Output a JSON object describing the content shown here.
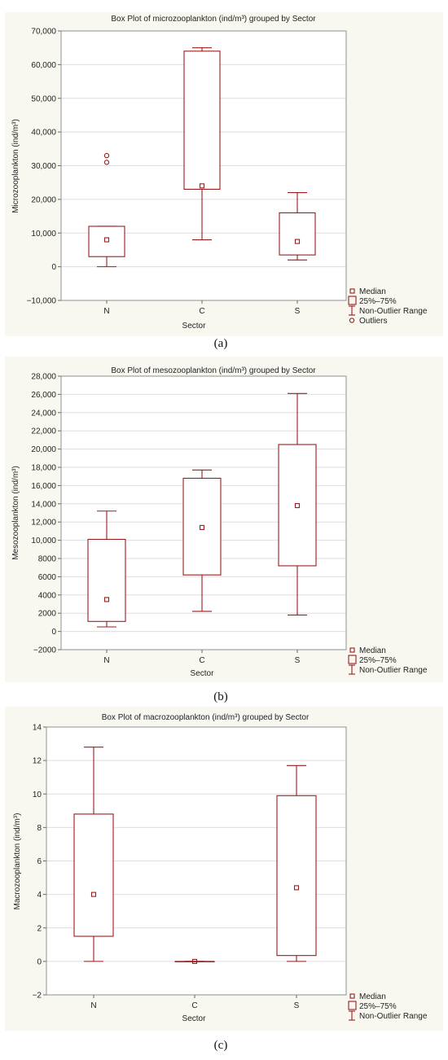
{
  "colors": {
    "marker": "#9b1c1c",
    "panel_background": "#f8f8f1",
    "grid": "#dedede"
  },
  "legend_labels": {
    "median": "Median",
    "box": "25%–75%",
    "whisker": "Non-Outlier Range",
    "outliers": "Outliers"
  },
  "chart_data": [
    {
      "type": "box",
      "panel_label": "(a)",
      "title": "Box Plot of microzooplankton (ind/m³) grouped by  Sector",
      "xlabel": "Sector",
      "ylabel": "Microzooplankton (ind/m³)",
      "ylim": [
        -10000,
        70000
      ],
      "yticks": [
        -10000,
        0,
        10000,
        20000,
        30000,
        40000,
        50000,
        60000,
        70000
      ],
      "ytick_labels": [
        "−10,000",
        "0",
        "10,000",
        "20,000",
        "30,000",
        "40,000",
        "50,000",
        "60,000",
        "70,000"
      ],
      "grid": true,
      "legend_position": "bottom-right",
      "legend_items": [
        "median",
        "box",
        "whisker",
        "outliers"
      ],
      "categories": [
        "N",
        "C",
        "S"
      ],
      "boxes": [
        {
          "median": 8000,
          "q1": 3000,
          "q3": 12000,
          "min": 0,
          "max": 12000,
          "outliers": [
            31000,
            33000
          ]
        },
        {
          "median": 24000,
          "q1": 23000,
          "q3": 64000,
          "min": 8000,
          "max": 65000,
          "outliers": []
        },
        {
          "median": 7500,
          "q1": 3500,
          "q3": 16000,
          "min": 2000,
          "max": 22000,
          "outliers": []
        }
      ]
    },
    {
      "type": "box",
      "panel_label": "(b)",
      "title": "Box Plot of mesozooplankton (ind/m³) grouped by  Sector",
      "xlabel": "Sector",
      "ylabel": "Mesozooplankton (ind/m³)",
      "ylim": [
        -2000,
        28000
      ],
      "yticks": [
        -2000,
        0,
        2000,
        4000,
        6000,
        8000,
        10000,
        12000,
        14000,
        16000,
        18000,
        20000,
        22000,
        24000,
        26000,
        28000
      ],
      "ytick_labels": [
        "−2000",
        "0",
        "2000",
        "4000",
        "6000",
        "8000",
        "10,000",
        "12,000",
        "14,000",
        "16,000",
        "18,000",
        "20,000",
        "22,000",
        "24,000",
        "26,000",
        "28,000"
      ],
      "grid": true,
      "legend_position": "bottom-right",
      "legend_items": [
        "median",
        "box",
        "whisker"
      ],
      "categories": [
        "N",
        "C",
        "S"
      ],
      "boxes": [
        {
          "median": 3500,
          "q1": 1100,
          "q3": 10100,
          "min": 500,
          "max": 13200,
          "outliers": []
        },
        {
          "median": 11400,
          "q1": 6200,
          "q3": 16800,
          "min": 2200,
          "max": 17700,
          "outliers": []
        },
        {
          "median": 13800,
          "q1": 7200,
          "q3": 20500,
          "min": 1800,
          "max": 26100,
          "outliers": []
        }
      ]
    },
    {
      "type": "box",
      "panel_label": "(c)",
      "title": "Box Plot of macrozooplankton (ind/m³) grouped by  Sector",
      "xlabel": "Sector",
      "ylabel": "Macrozooplankton (ind/m³)",
      "ylim": [
        -2,
        14
      ],
      "yticks": [
        -2,
        0,
        2,
        4,
        6,
        8,
        10,
        12,
        14
      ],
      "ytick_labels": [
        "−2",
        "0",
        "2",
        "4",
        "6",
        "8",
        "10",
        "12",
        "14"
      ],
      "grid": true,
      "legend_position": "bottom-right",
      "legend_items": [
        "median",
        "box",
        "whisker"
      ],
      "categories": [
        "N",
        "C",
        "S"
      ],
      "boxes": [
        {
          "median": 4,
          "q1": 1.5,
          "q3": 8.8,
          "min": 0,
          "max": 12.8,
          "outliers": []
        },
        {
          "median": 0,
          "q1": 0,
          "q3": 0,
          "min": 0,
          "max": 0,
          "outliers": []
        },
        {
          "median": 4.4,
          "q1": 0.35,
          "q3": 9.9,
          "min": 0,
          "max": 11.7,
          "outliers": []
        }
      ]
    }
  ]
}
